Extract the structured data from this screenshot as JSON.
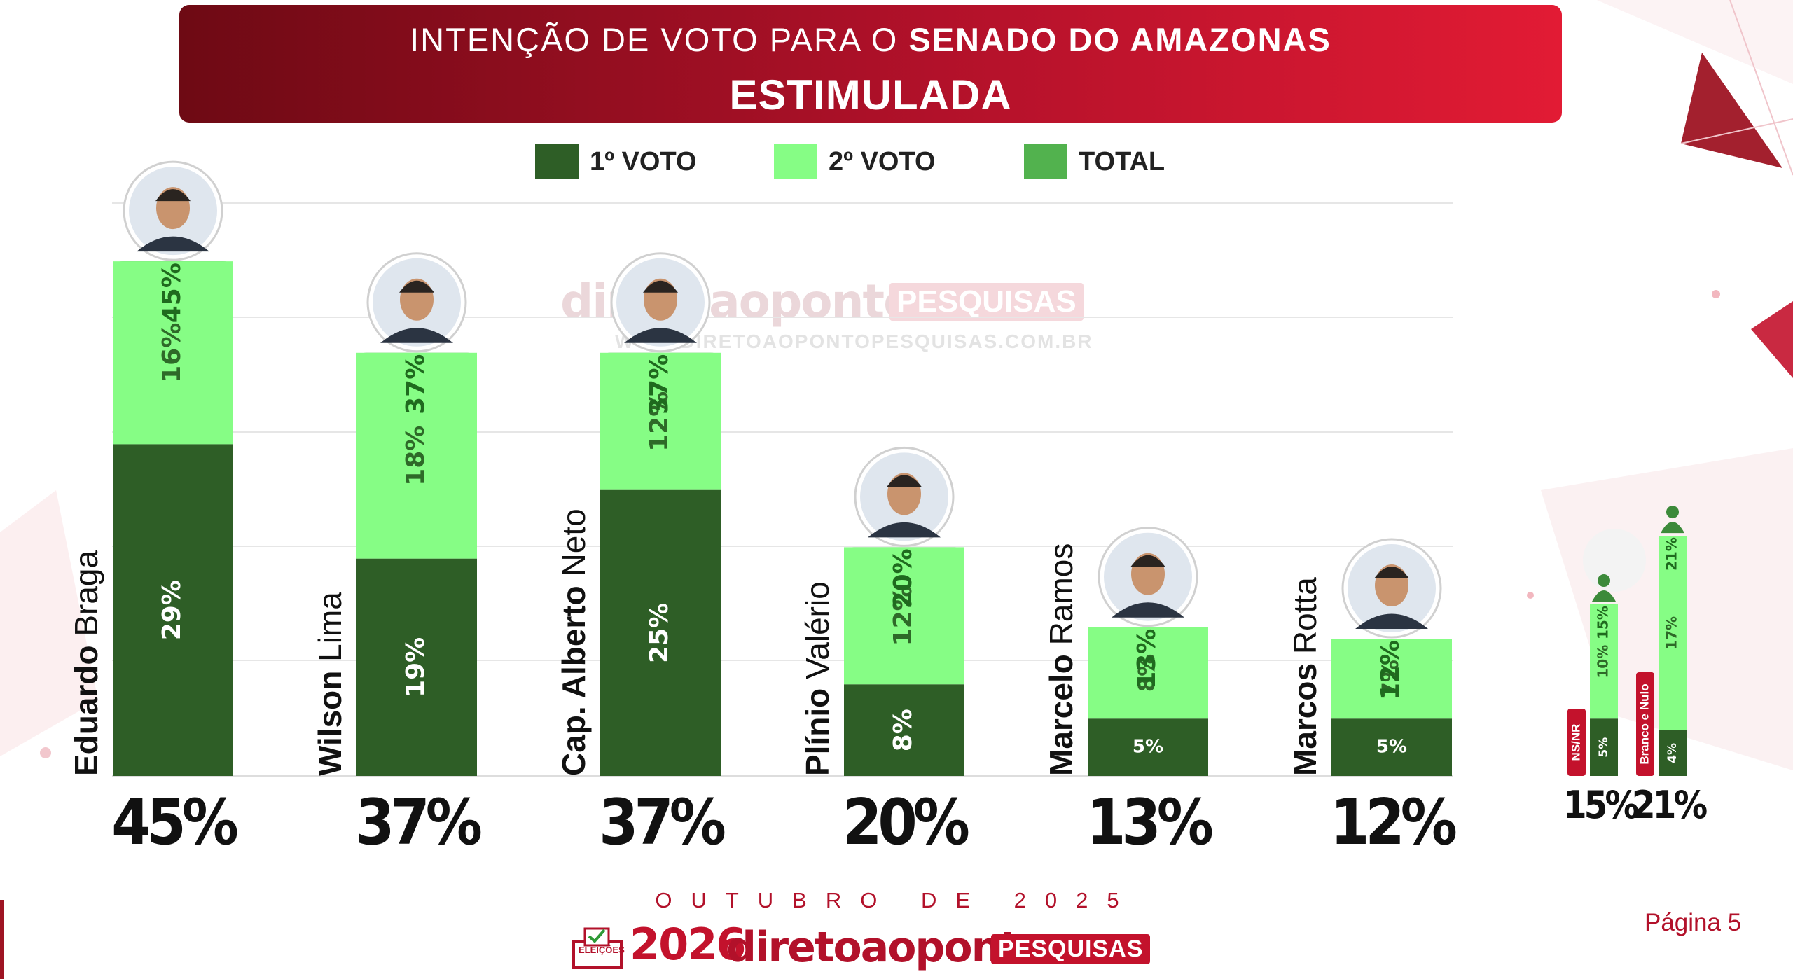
{
  "header": {
    "title_regular": "INTENÇÃO DE VOTO PARA O ",
    "title_bold": "SENADO DO AMAZONAS",
    "subtitle": "ESTIMULADA"
  },
  "legend": [
    {
      "label": "1º VOTO",
      "color": "#2e5e26"
    },
    {
      "label": "2º VOTO",
      "color": "#86fd85"
    },
    {
      "label": "TOTAL",
      "color": "#52b24e"
    }
  ],
  "colors": {
    "first": "#2e5e26",
    "second": "#86fd85",
    "total": "#52b24e",
    "brand": "#b2112a",
    "badge": "#c3122c"
  },
  "chart_data": {
    "type": "bar",
    "title": "INTENÇÃO DE VOTO PARA O SENADO DO AMAZONAS — ESTIMULADA",
    "stacking": "1º VOTO + 2º VOTO + TOTAL (segment label shows cumulative total)",
    "ylim": [
      0,
      50
    ],
    "gridlines": true,
    "categories": [
      {
        "first": "Eduardo",
        "last": "Braga",
        "first_weight": "bold",
        "last_weight": "normal",
        "photo": "candidate-photo-eduardo-braga"
      },
      {
        "first": "Wilson",
        "last": "Lima",
        "first_weight": "bold",
        "last_weight": "normal",
        "photo": "candidate-photo-wilson-lima"
      },
      {
        "first": "Cap. Alberto",
        "last": "Neto",
        "first_weight": "bold",
        "last_weight": "normal",
        "photo": "candidate-photo-alberto-neto"
      },
      {
        "first": "Plínio",
        "last": "Valério",
        "first_weight": "bold",
        "last_weight": "normal",
        "photo": "candidate-photo-plinio-valerio"
      },
      {
        "first": "Marcelo",
        "last": "Ramos",
        "first_weight": "bold",
        "last_weight": "normal",
        "photo": "candidate-photo-marcelo-ramos"
      },
      {
        "first": "Marcos",
        "last": "Rotta",
        "first_weight": "bold",
        "last_weight": "normal",
        "photo": "candidate-photo-marcos-rotta"
      }
    ],
    "series": [
      {
        "name": "1º VOTO",
        "values": [
          29,
          19,
          25,
          8,
          5,
          5
        ],
        "labels": [
          "29%",
          "19%",
          "25%",
          "8%",
          "5%",
          "5%"
        ]
      },
      {
        "name": "2º VOTO",
        "values": [
          16,
          18,
          12,
          12,
          8,
          7
        ],
        "labels": [
          "16%",
          "18%",
          "12%",
          "12%",
          "8%",
          "7%"
        ]
      },
      {
        "name": "TOTAL",
        "values": [
          45,
          37,
          37,
          20,
          13,
          12
        ],
        "labels": [
          "45%",
          "37%",
          "37%",
          "20%",
          "13%",
          "12%"
        ]
      }
    ],
    "totals": [
      "45%",
      "37%",
      "37%",
      "20%",
      "13%",
      "12%"
    ],
    "others": [
      {
        "label": "NS/NR",
        "first": 5,
        "second": 10,
        "total": 15,
        "labels": [
          "5%",
          "10%",
          "15%"
        ],
        "total_label": "15%"
      },
      {
        "label": "Branco e Nulo",
        "first": 4,
        "second": 17,
        "total": 21,
        "labels": [
          "4%",
          "17%",
          "21%"
        ],
        "total_label": "21%"
      }
    ]
  },
  "watermark": {
    "brand": "diretoaoponto",
    "badge": "PESQUISAS",
    "url": "WWW.DIRETOAOPONTOPESQUISAS.COM.BR"
  },
  "footer": {
    "date": "OUTUBRO DE 2025",
    "logo_year": "2026",
    "logo_brand": "diretoaoponto",
    "logo_badge": "PESQUISAS",
    "ballot_label": "ELEIÇÕES",
    "page": "Página 5"
  }
}
